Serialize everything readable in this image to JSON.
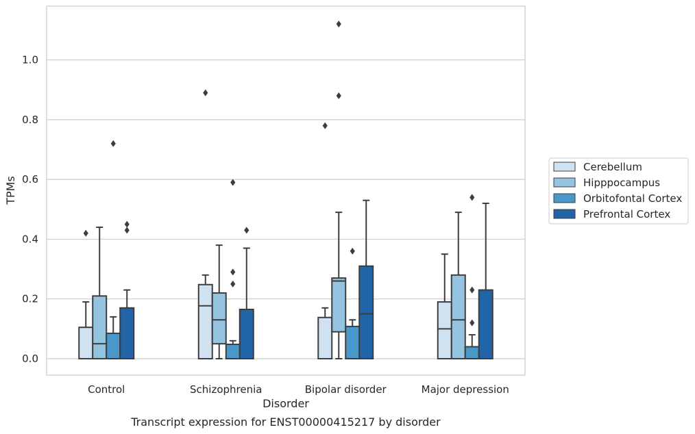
{
  "caption": "Transcript expression for ENST00000415217 by disorder",
  "chart_data": {
    "type": "box",
    "title": "",
    "xlabel": "Disorder",
    "ylabel": "TPMs",
    "ylim": [
      -0.055,
      1.18
    ],
    "yticks": [
      0.0,
      0.2,
      0.4,
      0.6,
      0.8,
      1.0
    ],
    "ytick_labels": [
      "0.0",
      "0.2",
      "0.4",
      "0.6",
      "0.8",
      "1.0"
    ],
    "grid": "horizontal",
    "legend_position": "right",
    "categories": [
      "Control",
      "Schizophrenia",
      "Bipolar disorder",
      "Major depression"
    ],
    "series": [
      {
        "name": "Cerebellum",
        "color": "#d0e1f2",
        "boxes": [
          {
            "whislo": 0.0,
            "q1": 0.0,
            "med": 0.0,
            "q3": 0.105,
            "whishi": 0.19,
            "fliers": [
              0.42
            ]
          },
          {
            "whislo": 0.0,
            "q1": 0.0,
            "med": 0.177,
            "q3": 0.248,
            "whishi": 0.28,
            "fliers": [
              0.89
            ]
          },
          {
            "whislo": 0.0,
            "q1": 0.0,
            "med": 0.0,
            "q3": 0.138,
            "whishi": 0.17,
            "fliers": [
              0.78
            ]
          },
          {
            "whislo": 0.0,
            "q1": 0.0,
            "med": 0.1,
            "q3": 0.19,
            "whishi": 0.35,
            "fliers": []
          }
        ]
      },
      {
        "name": "Hipppocampus",
        "color": "#94c4df",
        "boxes": [
          {
            "whislo": 0.0,
            "q1": 0.0,
            "med": 0.05,
            "q3": 0.21,
            "whishi": 0.44,
            "fliers": []
          },
          {
            "whislo": 0.0,
            "q1": 0.05,
            "med": 0.13,
            "q3": 0.22,
            "whishi": 0.38,
            "fliers": []
          },
          {
            "whislo": 0.0,
            "q1": 0.09,
            "med": 0.26,
            "q3": 0.27,
            "whishi": 0.49,
            "fliers": [
              0.88,
              1.12
            ]
          },
          {
            "whislo": 0.0,
            "q1": 0.0,
            "med": 0.13,
            "q3": 0.28,
            "whishi": 0.49,
            "fliers": []
          }
        ]
      },
      {
        "name": "Orbitofontal Cortex",
        "color": "#4a98c9",
        "boxes": [
          {
            "whislo": 0.0,
            "q1": 0.0,
            "med": 0.0,
            "q3": 0.085,
            "whishi": 0.14,
            "fliers": [
              0.72
            ]
          },
          {
            "whislo": 0.0,
            "q1": 0.0,
            "med": 0.0,
            "q3": 0.048,
            "whishi": 0.06,
            "fliers": [
              0.25,
              0.29,
              0.59
            ]
          },
          {
            "whislo": 0.0,
            "q1": 0.0,
            "med": 0.0,
            "q3": 0.108,
            "whishi": 0.13,
            "fliers": [
              0.36
            ]
          },
          {
            "whislo": 0.0,
            "q1": 0.0,
            "med": 0.0,
            "q3": 0.04,
            "whishi": 0.08,
            "fliers": [
              0.12,
              0.23,
              0.54
            ]
          }
        ]
      },
      {
        "name": "Prefrontal Cortex",
        "color": "#2264a8",
        "boxes": [
          {
            "whislo": 0.0,
            "q1": 0.0,
            "med": 0.0,
            "q3": 0.17,
            "whishi": 0.23,
            "fliers": [
              0.43,
              0.45
            ]
          },
          {
            "whislo": 0.0,
            "q1": 0.0,
            "med": 0.0,
            "q3": 0.165,
            "whishi": 0.37,
            "fliers": [
              0.43
            ]
          },
          {
            "whislo": 0.0,
            "q1": 0.0,
            "med": 0.15,
            "q3": 0.31,
            "whishi": 0.53,
            "fliers": []
          },
          {
            "whislo": 0.0,
            "q1": 0.0,
            "med": 0.0,
            "q3": 0.23,
            "whishi": 0.52,
            "fliers": []
          }
        ]
      }
    ]
  }
}
